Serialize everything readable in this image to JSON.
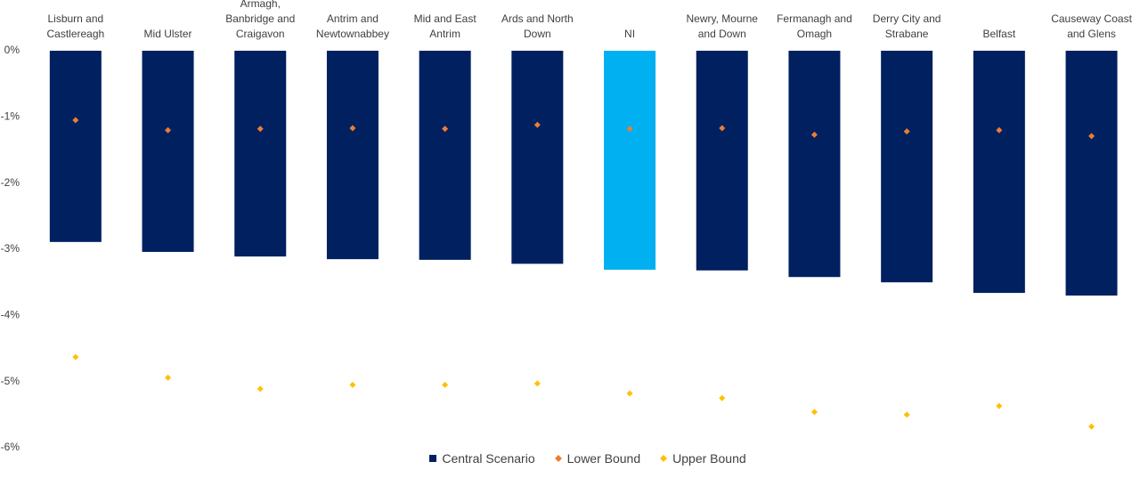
{
  "chart_data": {
    "type": "bar",
    "categories": [
      "Lisburn and Castlereagh",
      "Mid Ulster",
      "Armagh, Banbridge and Craigavon",
      "Antrim and Newtownabbey",
      "Mid and East Antrim",
      "Ards and North Down",
      "NI",
      "Newry, Mourne and Down",
      "Fermanagh and Omagh",
      "Derry City and Strabane",
      "Belfast",
      "Causeway Coast and Glens"
    ],
    "series": [
      {
        "name": "Central Scenario",
        "color": "#002060",
        "colors": [
          "#002060",
          "#002060",
          "#002060",
          "#002060",
          "#002060",
          "#002060",
          "#00b0f0",
          "#002060",
          "#002060",
          "#002060",
          "#002060",
          "#002060"
        ],
        "values": [
          -2.89,
          -3.04,
          -3.11,
          -3.15,
          -3.16,
          -3.22,
          -3.31,
          -3.32,
          -3.42,
          -3.5,
          -3.66,
          -3.7
        ]
      },
      {
        "name": "Lower Bound",
        "color": "#ed7d31",
        "marker": "diamond",
        "values": [
          -1.05,
          -1.2,
          -1.18,
          -1.17,
          -1.18,
          -1.12,
          -1.18,
          -1.17,
          -1.27,
          -1.22,
          -1.2,
          -1.29
        ]
      },
      {
        "name": "Upper Bound",
        "color": "#ffc000",
        "marker": "diamond",
        "values": [
          -4.63,
          -4.94,
          -5.11,
          -5.05,
          -5.05,
          -5.03,
          -5.18,
          -5.25,
          -5.46,
          -5.5,
          -5.37,
          -5.68
        ]
      }
    ],
    "ylim": [
      -6,
      0
    ],
    "yticks": [
      {
        "value": 0,
        "label": "0%"
      },
      {
        "value": -1,
        "label": "-1%"
      },
      {
        "value": -2,
        "label": "-2%"
      },
      {
        "value": -3,
        "label": "-3%"
      },
      {
        "value": -4,
        "label": "-4%"
      },
      {
        "value": -5,
        "label": "-5%"
      },
      {
        "value": -6,
        "label": "-6%"
      }
    ],
    "legend": "bottom"
  }
}
